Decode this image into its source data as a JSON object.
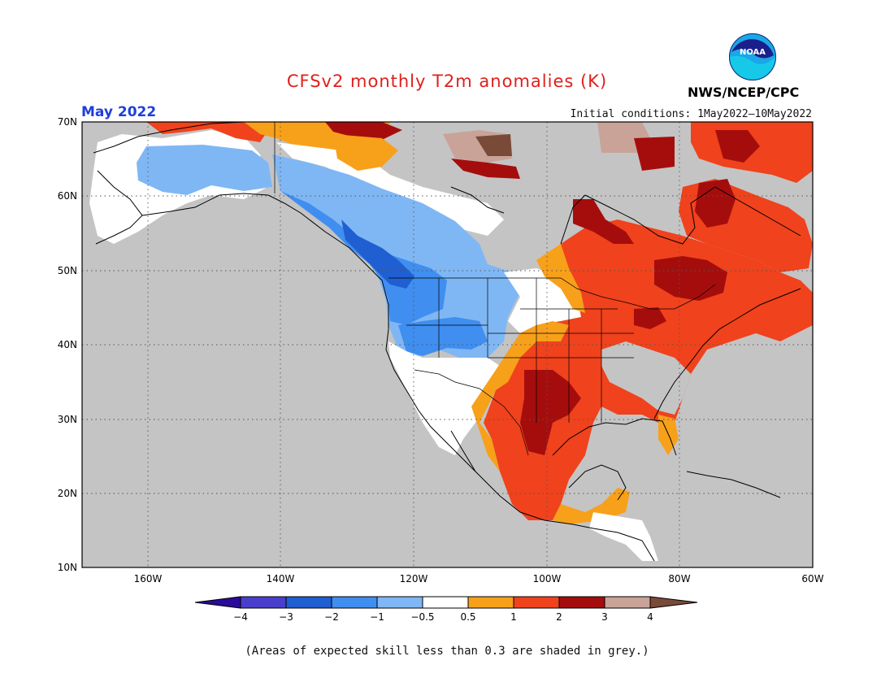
{
  "header": {
    "title": "CFSv2 monthly T2m anomalies (K)",
    "month": "May 2022",
    "initial_conditions": "Initial conditions: 1May2022–10May2022",
    "agency": "NWS/NCEP/CPC",
    "logo_text": "NOAA"
  },
  "map": {
    "lat_labels": [
      "70N",
      "60N",
      "50N",
      "40N",
      "30N",
      "20N",
      "10N"
    ],
    "lon_labels": [
      "160W",
      "140W",
      "120W",
      "100W",
      "80W",
      "60W"
    ],
    "grid": true,
    "masked_color": "#c4c4c4"
  },
  "colorbar": {
    "labels": [
      "−4",
      "−3",
      "−2",
      "−1",
      "−0.5",
      "0.5",
      "1",
      "2",
      "3",
      "4"
    ],
    "colors": [
      "#2a0b9a",
      "#4a3fcc",
      "#1f5fd1",
      "#3f8ef0",
      "#7fb7f4",
      "#ffffff",
      "#f7a01a",
      "#f0421c",
      "#a50d0d",
      "#c9a398",
      "#7a4a38"
    ]
  },
  "footnote": "(Areas of expected skill less than 0.3 are shaded in grey.)"
}
